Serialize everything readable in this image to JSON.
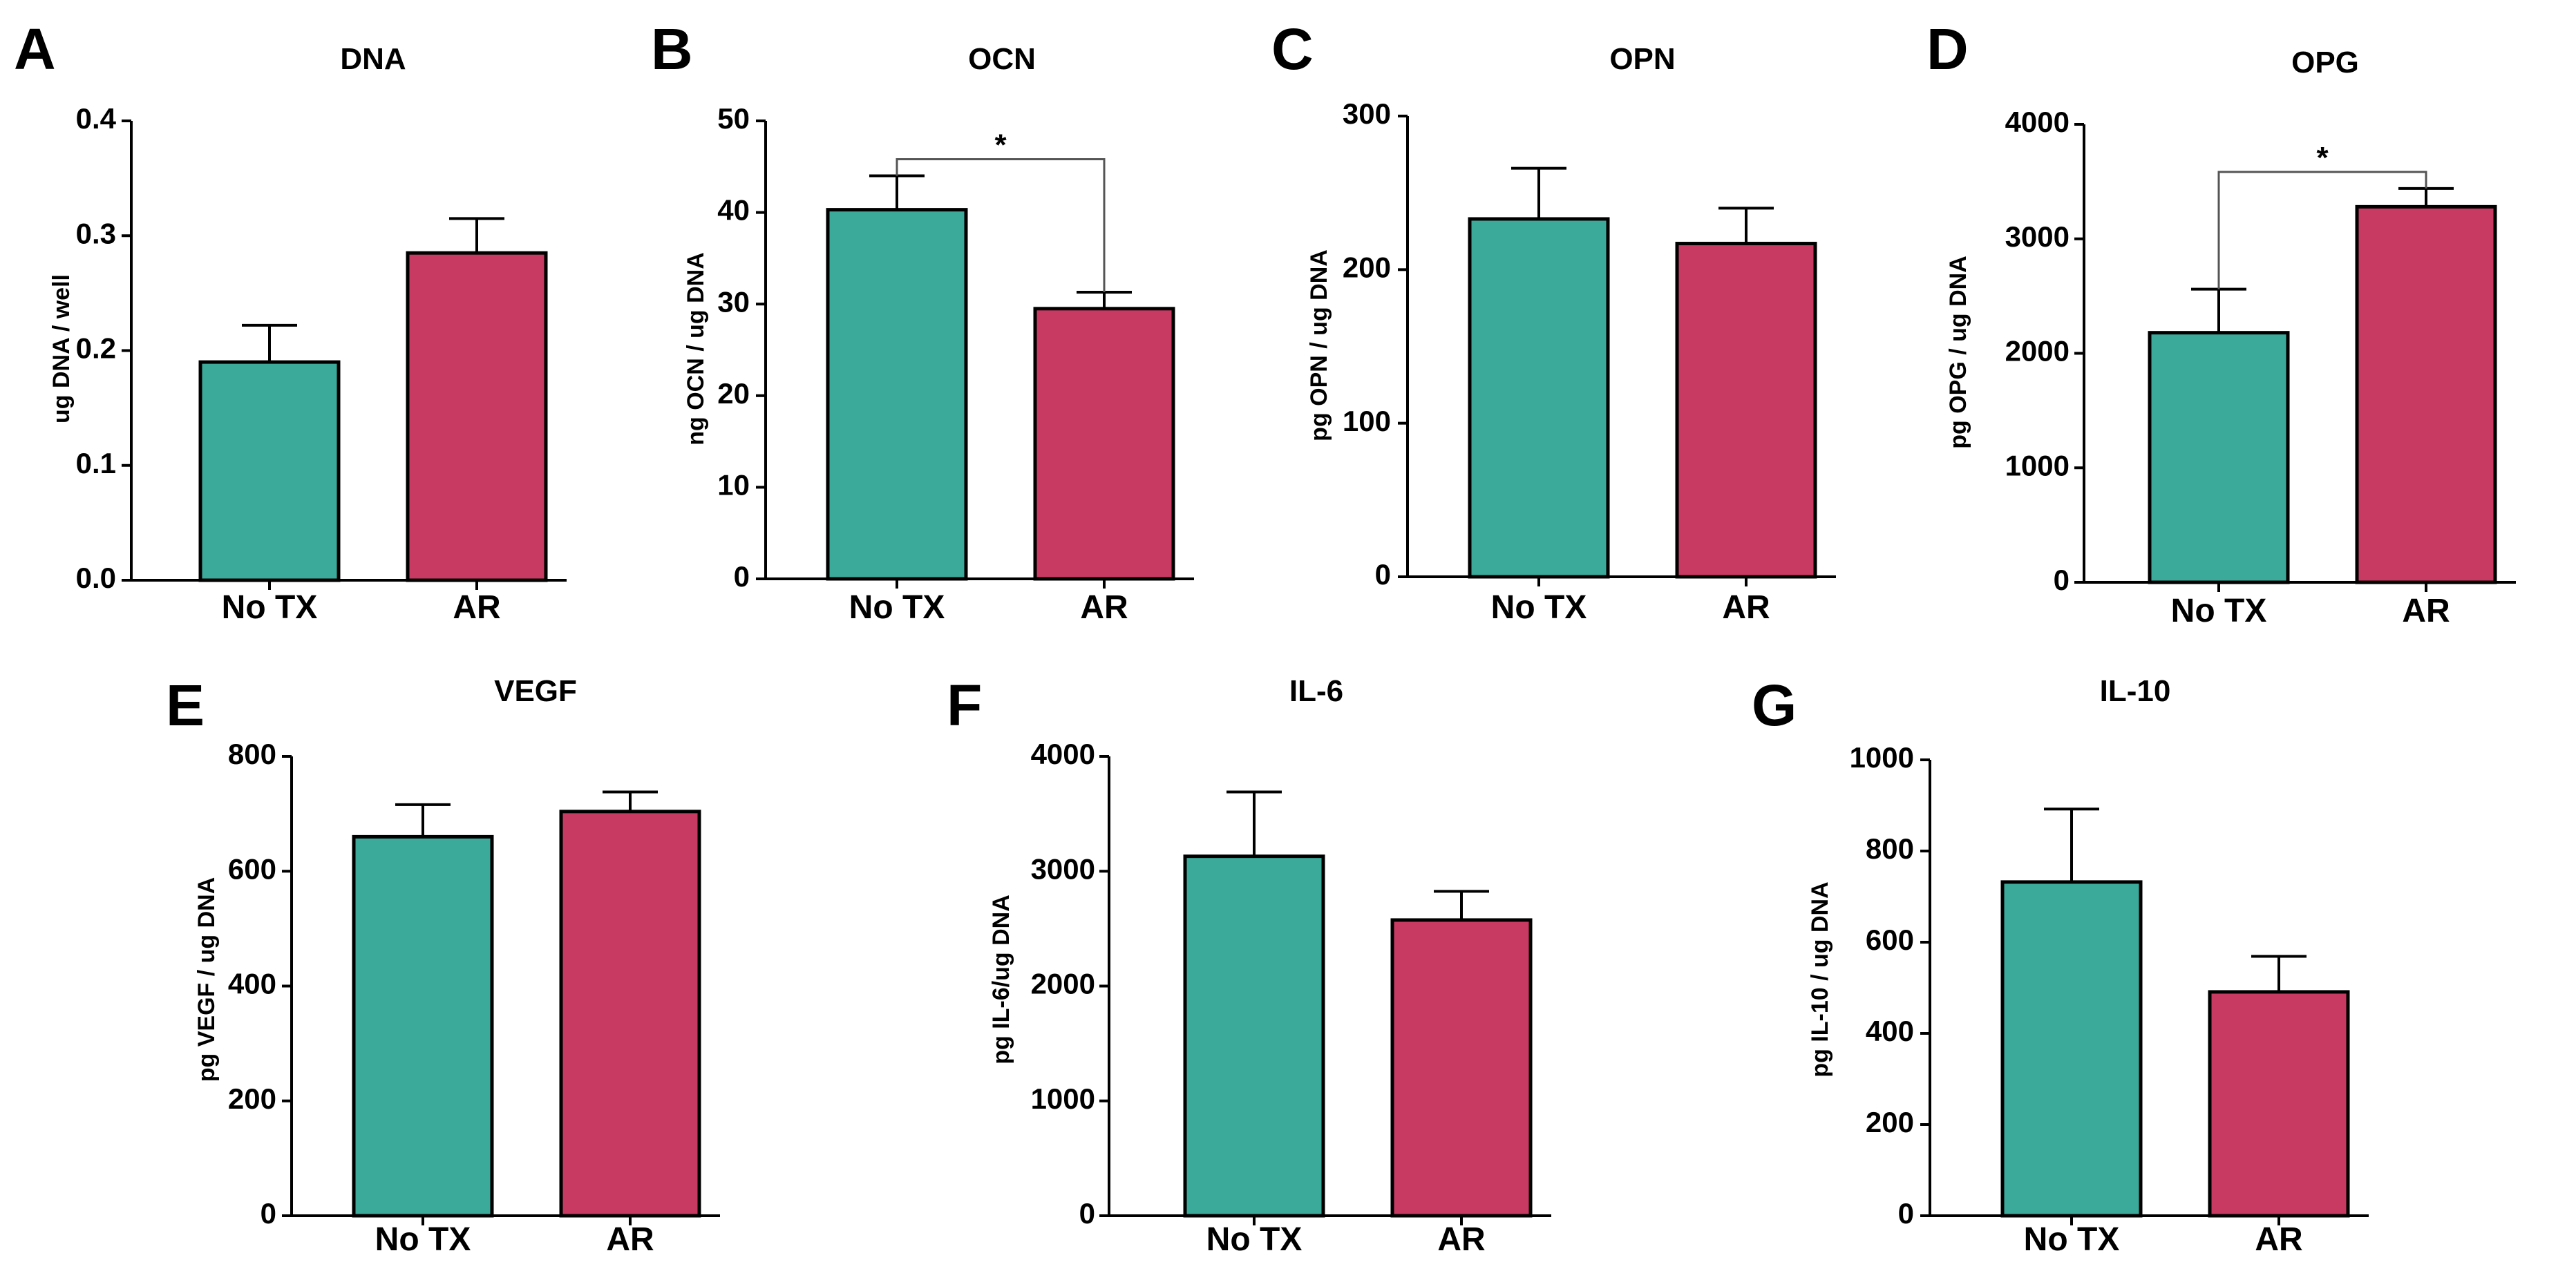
{
  "colors": {
    "no_tx": "#3BAA9A",
    "ar": "#C93A63",
    "axis": "#000000",
    "bracket": "#555555"
  },
  "chart_data": [
    {
      "panel": "A",
      "type": "bar",
      "title": "DNA",
      "ylabel": "ug DNA / well",
      "categories": [
        "No TX",
        "AR"
      ],
      "values": [
        0.19,
        0.285
      ],
      "errors": [
        0.032,
        0.03
      ],
      "ylim": [
        0,
        0.4
      ],
      "yticks": [
        0.0,
        0.1,
        0.2,
        0.3,
        0.4
      ],
      "ytick_labels": [
        "0.0",
        "0.1",
        "0.2",
        "0.3",
        "0.4"
      ],
      "significance": null
    },
    {
      "panel": "B",
      "type": "bar",
      "title": "OCN",
      "ylabel": "ng OCN / ug DNA",
      "categories": [
        "No TX",
        "AR"
      ],
      "values": [
        40.3,
        29.5
      ],
      "errors": [
        3.7,
        1.8
      ],
      "ylim": [
        0,
        50
      ],
      "yticks": [
        0,
        10,
        20,
        30,
        40,
        50
      ],
      "ytick_labels": [
        "0",
        "10",
        "20",
        "30",
        "40",
        "50"
      ],
      "significance": "*"
    },
    {
      "panel": "C",
      "type": "bar",
      "title": "OPN",
      "ylabel": "pg OPN / ug DNA",
      "categories": [
        "No TX",
        "AR"
      ],
      "values": [
        233,
        217
      ],
      "errors": [
        33,
        23
      ],
      "ylim": [
        0,
        300
      ],
      "yticks": [
        0,
        100,
        200,
        300
      ],
      "ytick_labels": [
        "0",
        "100",
        "200",
        "300"
      ],
      "significance": null
    },
    {
      "panel": "D",
      "type": "bar",
      "title": "OPG",
      "ylabel": "pg OPG / ug DNA",
      "categories": [
        "No TX",
        "AR"
      ],
      "values": [
        2180,
        3280
      ],
      "errors": [
        380,
        160
      ],
      "ylim": [
        0,
        4000
      ],
      "yticks": [
        0,
        1000,
        2000,
        3000,
        4000
      ],
      "ytick_labels": [
        "0",
        "1000",
        "2000",
        "3000",
        "4000"
      ],
      "significance": "*"
    },
    {
      "panel": "E",
      "type": "bar",
      "title": "VEGF",
      "ylabel": "pg VEGF / ug DNA",
      "categories": [
        "No TX",
        "AR"
      ],
      "values": [
        660,
        704
      ],
      "errors": [
        56,
        34
      ],
      "ylim": [
        0,
        800
      ],
      "yticks": [
        0,
        200,
        400,
        600,
        800
      ],
      "ytick_labels": [
        "0",
        "200",
        "400",
        "600",
        "800"
      ],
      "significance": null
    },
    {
      "panel": "F",
      "type": "bar",
      "title": "IL-6",
      "ylabel": "pg IL-6/ug DNA",
      "categories": [
        "No TX",
        "AR"
      ],
      "values": [
        3130,
        2575
      ],
      "errors": [
        560,
        250
      ],
      "ylim": [
        0,
        4000
      ],
      "yticks": [
        0,
        1000,
        2000,
        3000,
        4000
      ],
      "ytick_labels": [
        "0",
        "1000",
        "2000",
        "3000",
        "4000"
      ],
      "significance": null
    },
    {
      "panel": "G",
      "type": "bar",
      "title": "IL-10",
      "ylabel": "pg IL-10 / ug DNA",
      "categories": [
        "No TX",
        "AR"
      ],
      "values": [
        732,
        491
      ],
      "errors": [
        160,
        78
      ],
      "ylim": [
        0,
        1000
      ],
      "yticks": [
        0,
        200,
        400,
        600,
        800,
        1000
      ],
      "ytick_labels": [
        "0",
        "200",
        "400",
        "600",
        "800",
        "1000"
      ],
      "significance": null
    }
  ]
}
